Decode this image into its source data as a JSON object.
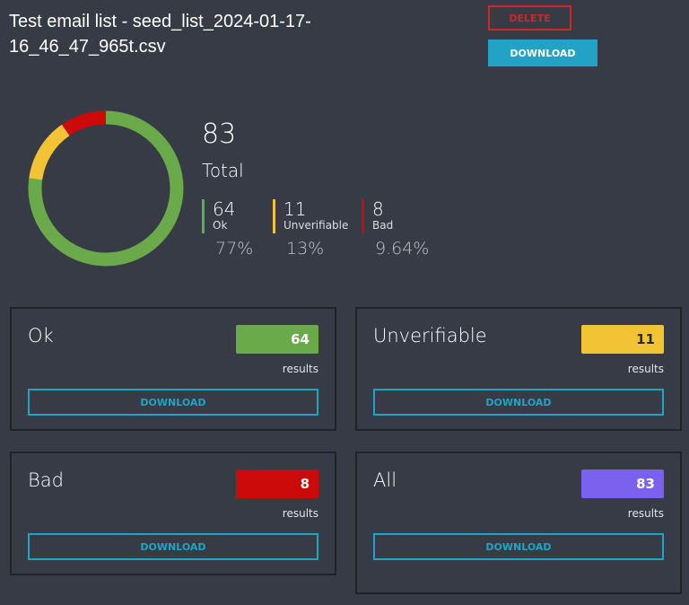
{
  "header": {
    "title": "Test email list - seed_list_2024-01-17-16_46_47_965t.csv",
    "delete_button": "DELETE",
    "download_button": "DOWNLOAD"
  },
  "summary": {
    "total": 83,
    "total_label": "Total",
    "stats": [
      {
        "count": 64,
        "name": "Ok",
        "percent": "77%",
        "color": "#6aaa4b"
      },
      {
        "count": 11,
        "name": "Unverifiable",
        "percent": "13%",
        "color": "#f2c335"
      },
      {
        "count": 8,
        "name": "Bad",
        "percent": "9.64%",
        "color": "#cc0a0a"
      }
    ]
  },
  "cards": [
    {
      "title": "Ok",
      "count": 64,
      "unit": "results",
      "button": "DOWNLOAD",
      "color": "#6aaa4b",
      "text_color": "#ffffff"
    },
    {
      "title": "Unverifiable",
      "count": 11,
      "unit": "results",
      "button": "DOWNLOAD",
      "color": "#f2c335",
      "text_color": "#2a2a2a"
    },
    {
      "title": "Bad",
      "count": 8,
      "unit": "results",
      "button": "DOWNLOAD",
      "color": "#cc0a0a",
      "text_color": "#ffffff"
    },
    {
      "title": "All",
      "count": 83,
      "unit": "results",
      "button": "DOWNLOAD",
      "color": "#7a62ee",
      "text_color": "#ffffff"
    }
  ]
}
